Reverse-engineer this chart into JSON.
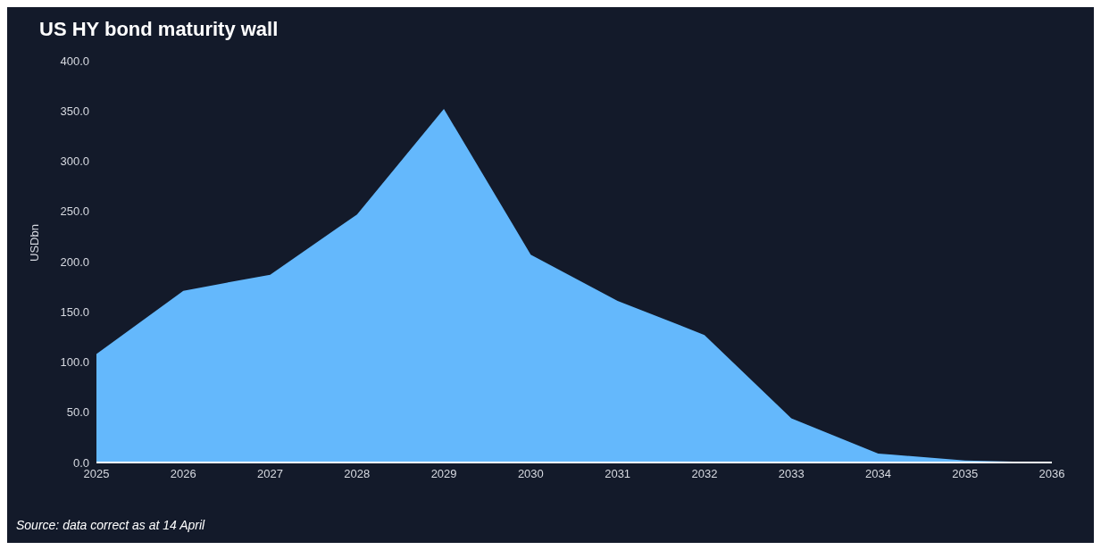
{
  "chart_data": {
    "type": "area",
    "title": "US HY bond maturity wall",
    "ylabel": "USDbn",
    "x": [
      2025,
      2026,
      2027,
      2028,
      2029,
      2030,
      2031,
      2032,
      2033,
      2034,
      2035,
      2036
    ],
    "series": [
      {
        "color": "#64b8fc",
        "values": [
          108,
          171,
          187,
          247,
          352,
          207,
          161,
          127,
          44,
          9,
          2,
          0
        ]
      }
    ],
    "xlim": [
      2025,
      2036
    ],
    "xticks": [
      2025,
      2026,
      2027,
      2028,
      2029,
      2030,
      2031,
      2032,
      2033,
      2034,
      2035,
      2036
    ],
    "ylim": [
      0,
      400
    ],
    "yticks": [
      {
        "value": 0,
        "label": "0.0"
      },
      {
        "value": 50,
        "label": "50.0"
      },
      {
        "value": 100,
        "label": "100.0"
      },
      {
        "value": 150,
        "label": "150.0"
      },
      {
        "value": 200,
        "label": "200.0"
      },
      {
        "value": 250,
        "label": "250.0"
      },
      {
        "value": 300,
        "label": "300.0"
      },
      {
        "value": 350,
        "label": "350.0"
      },
      {
        "value": 400,
        "label": "400.0"
      }
    ],
    "grid": false,
    "legend": false,
    "annotations": [
      "Source: data correct as at 14 April"
    ]
  }
}
